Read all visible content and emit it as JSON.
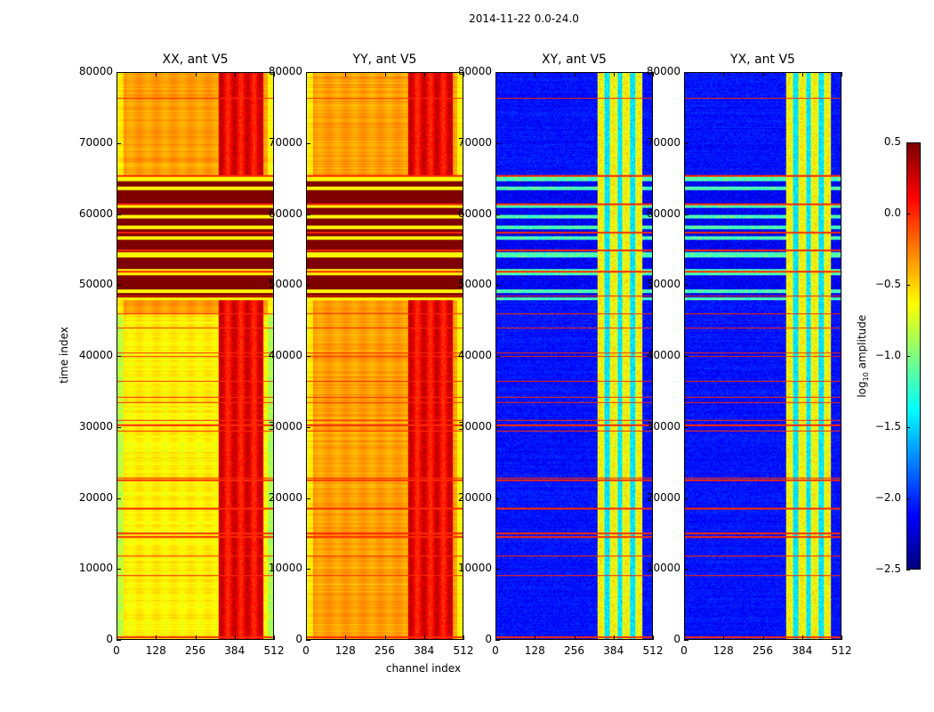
{
  "chart_data": {
    "type": "heatmap",
    "title": "2014-11-22 0.0-24.0",
    "xlabel": "channel index",
    "ylabel": "time index",
    "xlim": [
      0,
      512
    ],
    "ylim": [
      0,
      80000
    ],
    "xticks": [
      "0",
      "128",
      "256",
      "384",
      "512"
    ],
    "yticks": [
      "0",
      "10000",
      "20000",
      "30000",
      "40000",
      "50000",
      "60000",
      "70000",
      "80000"
    ],
    "panels": [
      {
        "title": "XX, ant V5",
        "kind": "auto",
        "variant": "xx"
      },
      {
        "title": "YY, ant V5",
        "kind": "auto",
        "variant": "yy"
      },
      {
        "title": "XY, ant V5",
        "kind": "cross",
        "variant": "xy"
      },
      {
        "title": "YX, ant V5",
        "kind": "cross",
        "variant": "yx"
      }
    ],
    "saturated_time_bands": [
      [
        48400,
        49000
      ],
      [
        49500,
        51500
      ],
      [
        52300,
        54000
      ],
      [
        54700,
        56500
      ],
      [
        57000,
        58000
      ],
      [
        58500,
        59500
      ],
      [
        60000,
        61000
      ],
      [
        61500,
        63500
      ],
      [
        64000,
        64800
      ]
    ],
    "flagged_time_rows": [
      300,
      9000,
      11800,
      14500,
      15000,
      18500,
      22500,
      22800,
      29500,
      30300,
      31000,
      33500,
      34200,
      36500,
      40000,
      40500,
      44000,
      46000,
      48500,
      52000,
      55000,
      57500,
      61500,
      65500,
      76500
    ],
    "rfi_channel_range": [
      330,
      480
    ],
    "colorbar": {
      "label": "log10 amplitude",
      "vmin": -2.5,
      "vmax": 0.5,
      "ticks": [
        "0.5",
        "0.0",
        "−0.5",
        "−1.0",
        "−1.5",
        "−2.0",
        "−2.5"
      ],
      "colormap": "jet"
    }
  }
}
